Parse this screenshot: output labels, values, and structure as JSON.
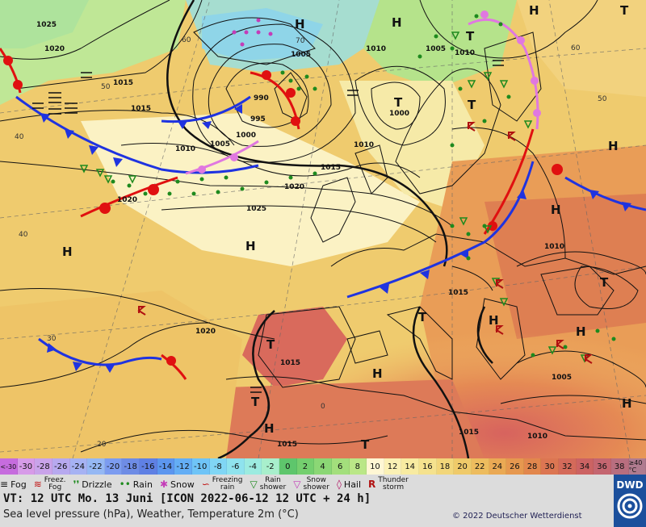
{
  "map": {
    "pressure_labels": [
      "1020",
      "1015",
      "1010",
      "1005",
      "1000",
      "995",
      "990",
      "1025",
      "1020",
      "1015",
      "1010",
      "1005",
      "1000",
      "1015",
      "1010",
      "1005",
      "1010",
      "1015",
      "1020",
      "1025",
      "1015",
      "1010",
      "1005",
      "1015",
      "1010",
      "1020",
      "1015"
    ],
    "lat_labels": [
      "60",
      "50",
      "40",
      "40",
      "30",
      "20",
      "0",
      "60",
      "70",
      "50"
    ],
    "highs": [
      "H",
      "H",
      "H",
      "H",
      "H",
      "H",
      "H",
      "H",
      "H",
      "H",
      "H",
      "H"
    ],
    "lows": [
      "T",
      "T",
      "T",
      "T",
      "T",
      "T",
      "T",
      "T",
      "T"
    ]
  },
  "scale": {
    "values": [
      "<-30",
      "-30",
      "-28",
      "-26",
      "-24",
      "-22",
      "-20",
      "-18",
      "-16",
      "-14",
      "-12",
      "-10",
      "-8",
      "-6",
      "-4",
      "-2",
      "0",
      "2",
      "4",
      "6",
      "8",
      "10",
      "12",
      "14",
      "16",
      "18",
      "20",
      "22",
      "24",
      "26",
      "28",
      "30",
      "32",
      "34",
      "36",
      "38",
      "≥40 °C"
    ],
    "colors": [
      "#c66cde",
      "#d79be8",
      "#c9a3ea",
      "#b7a9ef",
      "#a6b2f3",
      "#95b8f4",
      "#7c9cf0",
      "#6e8ce5",
      "#5f80e4",
      "#5c96ef",
      "#64aef5",
      "#6fc4f7",
      "#80d6f5",
      "#8fe3ee",
      "#9cebe0",
      "#a8efcc",
      "#5ec66c",
      "#74cf6e",
      "#8bd775",
      "#a3df7c",
      "#bae787",
      "#fff7d4",
      "#fbf1b5",
      "#f8eba1",
      "#f5e28e",
      "#f2d67a",
      "#efca6a",
      "#edbc5e",
      "#eaa954",
      "#e6984f",
      "#e2874d",
      "#dc7652",
      "#d46a5a",
      "#cc6363",
      "#c46670",
      "#b86e7f",
      "#b07b8f"
    ]
  },
  "legend": {
    "fog": "Fog",
    "freezing_fog_1": "Freez.",
    "freezing_fog_2": "Fog",
    "drizzle": "Drizzle",
    "rain": "Rain",
    "snow": "Snow",
    "freezing_rain_1": "Freezing",
    "freezing_rain_2": "rain",
    "rain_shower_1": "Rain",
    "rain_shower_2": "shower",
    "snow_shower_1": "Snow",
    "snow_shower_2": "shower",
    "hail": "Hail",
    "thunder_1": "Thunder",
    "thunder_2": "storm"
  },
  "footer": {
    "vt": "VT: 12 UTC Mo.  13 Juni [ICON 2022-06-12  12 UTC + 24 h]",
    "subtitle": "Sea level pressure (hPa), Weather, Temperature 2m (°C)",
    "copyright": "© 2022 Deutscher Wetterdienst",
    "logo": "DWD"
  }
}
